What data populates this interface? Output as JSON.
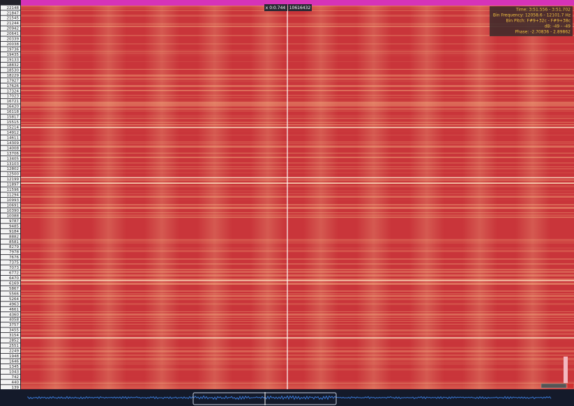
{
  "frequency_labels": [
    22148,
    21847,
    21545,
    21244,
    20942,
    20641,
    20339,
    20038,
    19736,
    19435,
    19133,
    18832,
    18530,
    18229,
    17927,
    17626,
    17324,
    17023,
    16721,
    16420,
    16118,
    15817,
    15515,
    15214,
    14912,
    14611,
    14309,
    14008,
    13706,
    13405,
    13103,
    12802,
    12500,
    12199,
    11897,
    11596,
    11294,
    10993,
    10691,
    10390,
    10088,
    9787,
    9485,
    9184,
    8882,
    8581,
    8279,
    7978,
    7676,
    7375,
    7073,
    6772,
    6470,
    6169,
    5867,
    5566,
    5264,
    4963,
    4661,
    4360,
    4058,
    3757,
    3455,
    3154,
    2852,
    2551,
    2249,
    1948,
    1646,
    1345,
    1043,
    742,
    440,
    139
  ],
  "cursor": {
    "time": "x 0:0.744",
    "value": "10616432"
  },
  "info": {
    "time": "Time: 3:51.556 - 3:51.702",
    "frequency": "Bin Frequency: 12058.6 - 12101.7 Hz",
    "pitch": "Bin Pitch: F#9+32c - F#9+38c",
    "db": "dB: -49 - -49",
    "phase": "Phase: -2.70836 - 2.89862"
  }
}
